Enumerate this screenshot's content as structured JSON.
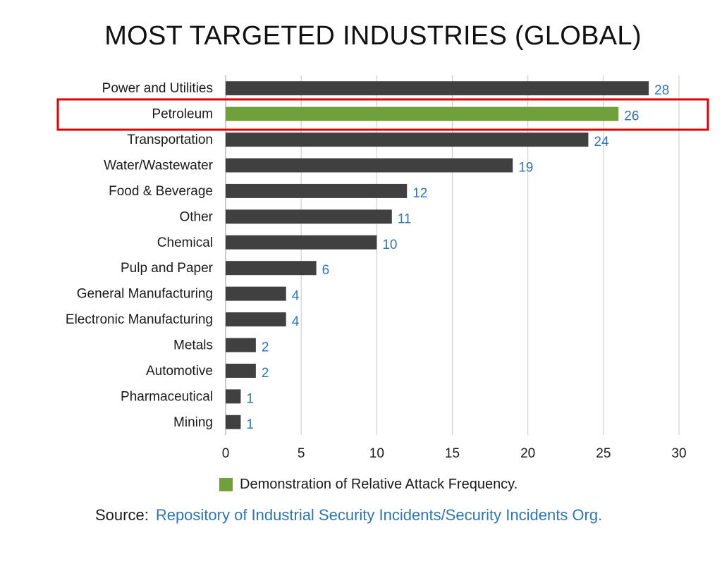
{
  "chart_data": {
    "type": "bar",
    "orientation": "horizontal",
    "title": "MOST TARGETED INDUSTRIES (GLOBAL)",
    "categories": [
      "Power and Utilities",
      "Petroleum",
      "Transportation",
      "Water/Wastewater",
      "Food & Beverage",
      "Other",
      "Chemical",
      "Pulp and Paper",
      "General Manufacturing",
      "Electronic Manufacturing",
      "Metals",
      "Automotive",
      "Pharmaceutical",
      "Mining"
    ],
    "values": [
      28,
      26,
      24,
      19,
      12,
      11,
      10,
      6,
      4,
      4,
      2,
      2,
      1,
      1
    ],
    "highlighted_category": "Petroleum",
    "xlabel": "",
    "ylabel": "",
    "xlim": [
      0,
      30
    ],
    "xticks": [
      0,
      5,
      10,
      15,
      20,
      25,
      30
    ],
    "grid": true,
    "legend_placement": "bottom",
    "colors": {
      "bar": "#404040",
      "highlight_bar": "#70a03c",
      "value_label": "#2e75b6",
      "highlight_box": "#e00000",
      "grid": "#c8c8c8"
    }
  },
  "legend": {
    "label": "Demonstration of Relative Attack Frequency.",
    "color": "#70a03c"
  },
  "source": {
    "prefix": "Source:",
    "text": "Repository of Industrial Security Incidents/Security Incidents Org."
  }
}
